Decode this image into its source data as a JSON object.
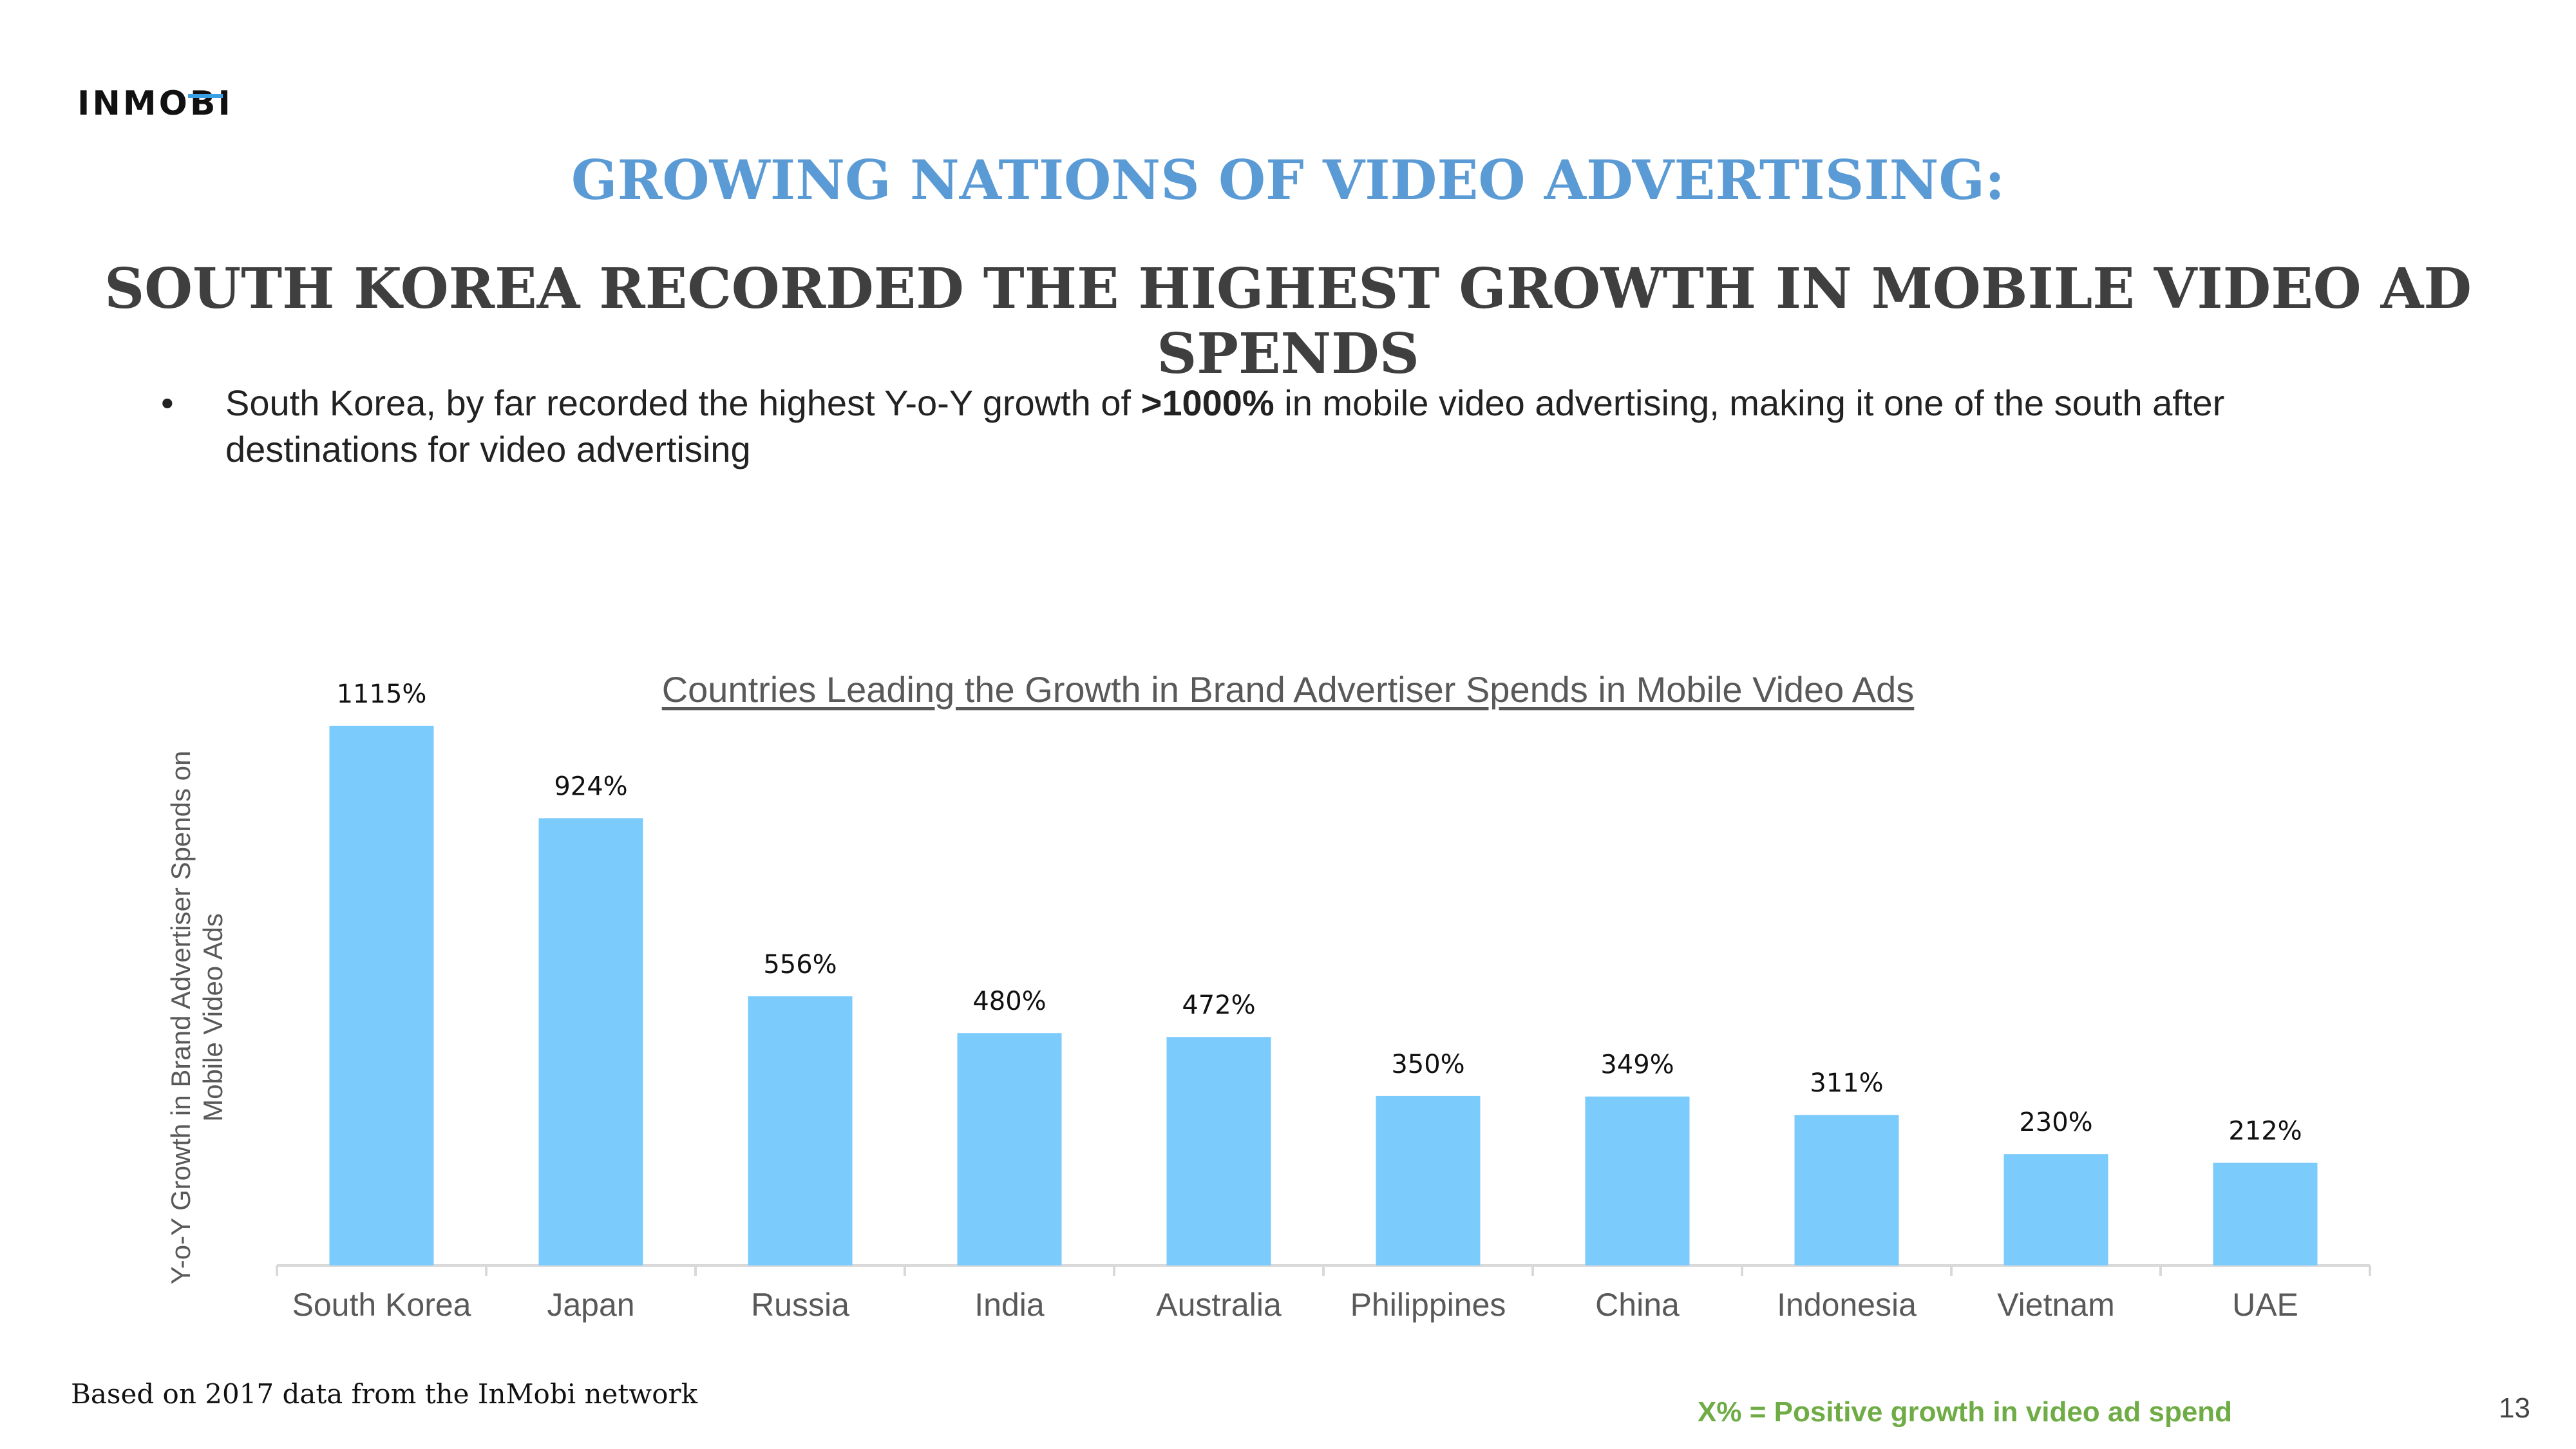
{
  "brand": {
    "logo_text": "INMOBI"
  },
  "header": {
    "title": "GROWING NATIONS OF VIDEO ADVERTISING:",
    "subtitle": "SOUTH KOREA RECORDED THE HIGHEST GROWTH IN MOBILE VIDEO AD SPENDS"
  },
  "bullet": {
    "text_before": "South Korea, by far recorded the highest Y-o-Y growth of ",
    "highlight": ">1000%",
    "text_after": " in mobile video advertising, making it one of the south after destinations for video advertising"
  },
  "chart_data": {
    "type": "bar",
    "title": "Countries Leading the Growth in Brand Advertiser Spends in Mobile Video Ads",
    "ylabel": "Y-o-Y Growth in Brand Advertiser Spends on Mobile Video Ads",
    "xlabel": "",
    "categories": [
      "South Korea",
      "Japan",
      "Russia",
      "India",
      "Australia",
      "Philippines",
      "China",
      "Indonesia",
      "Vietnam",
      "UAE"
    ],
    "values": [
      1115,
      924,
      556,
      480,
      472,
      350,
      349,
      311,
      230,
      212
    ],
    "value_labels": [
      "1115%",
      "924%",
      "556%",
      "480%",
      "472%",
      "350%",
      "349%",
      "311%",
      "230%",
      "212%"
    ],
    "ylim": [
      0,
      1200
    ],
    "grid": false,
    "bar_color": "#7ccbfd",
    "axis_color": "#d9d9d9"
  },
  "footer": {
    "source": "Based on 2017 data from the InMobi network",
    "legend_note": "X% = Positive growth in video ad spend",
    "page_number": "13"
  },
  "colors": {
    "title_blue": "#5b9bd5",
    "subtitle_gray": "#3f3f3f",
    "legend_green": "#6fac46"
  }
}
